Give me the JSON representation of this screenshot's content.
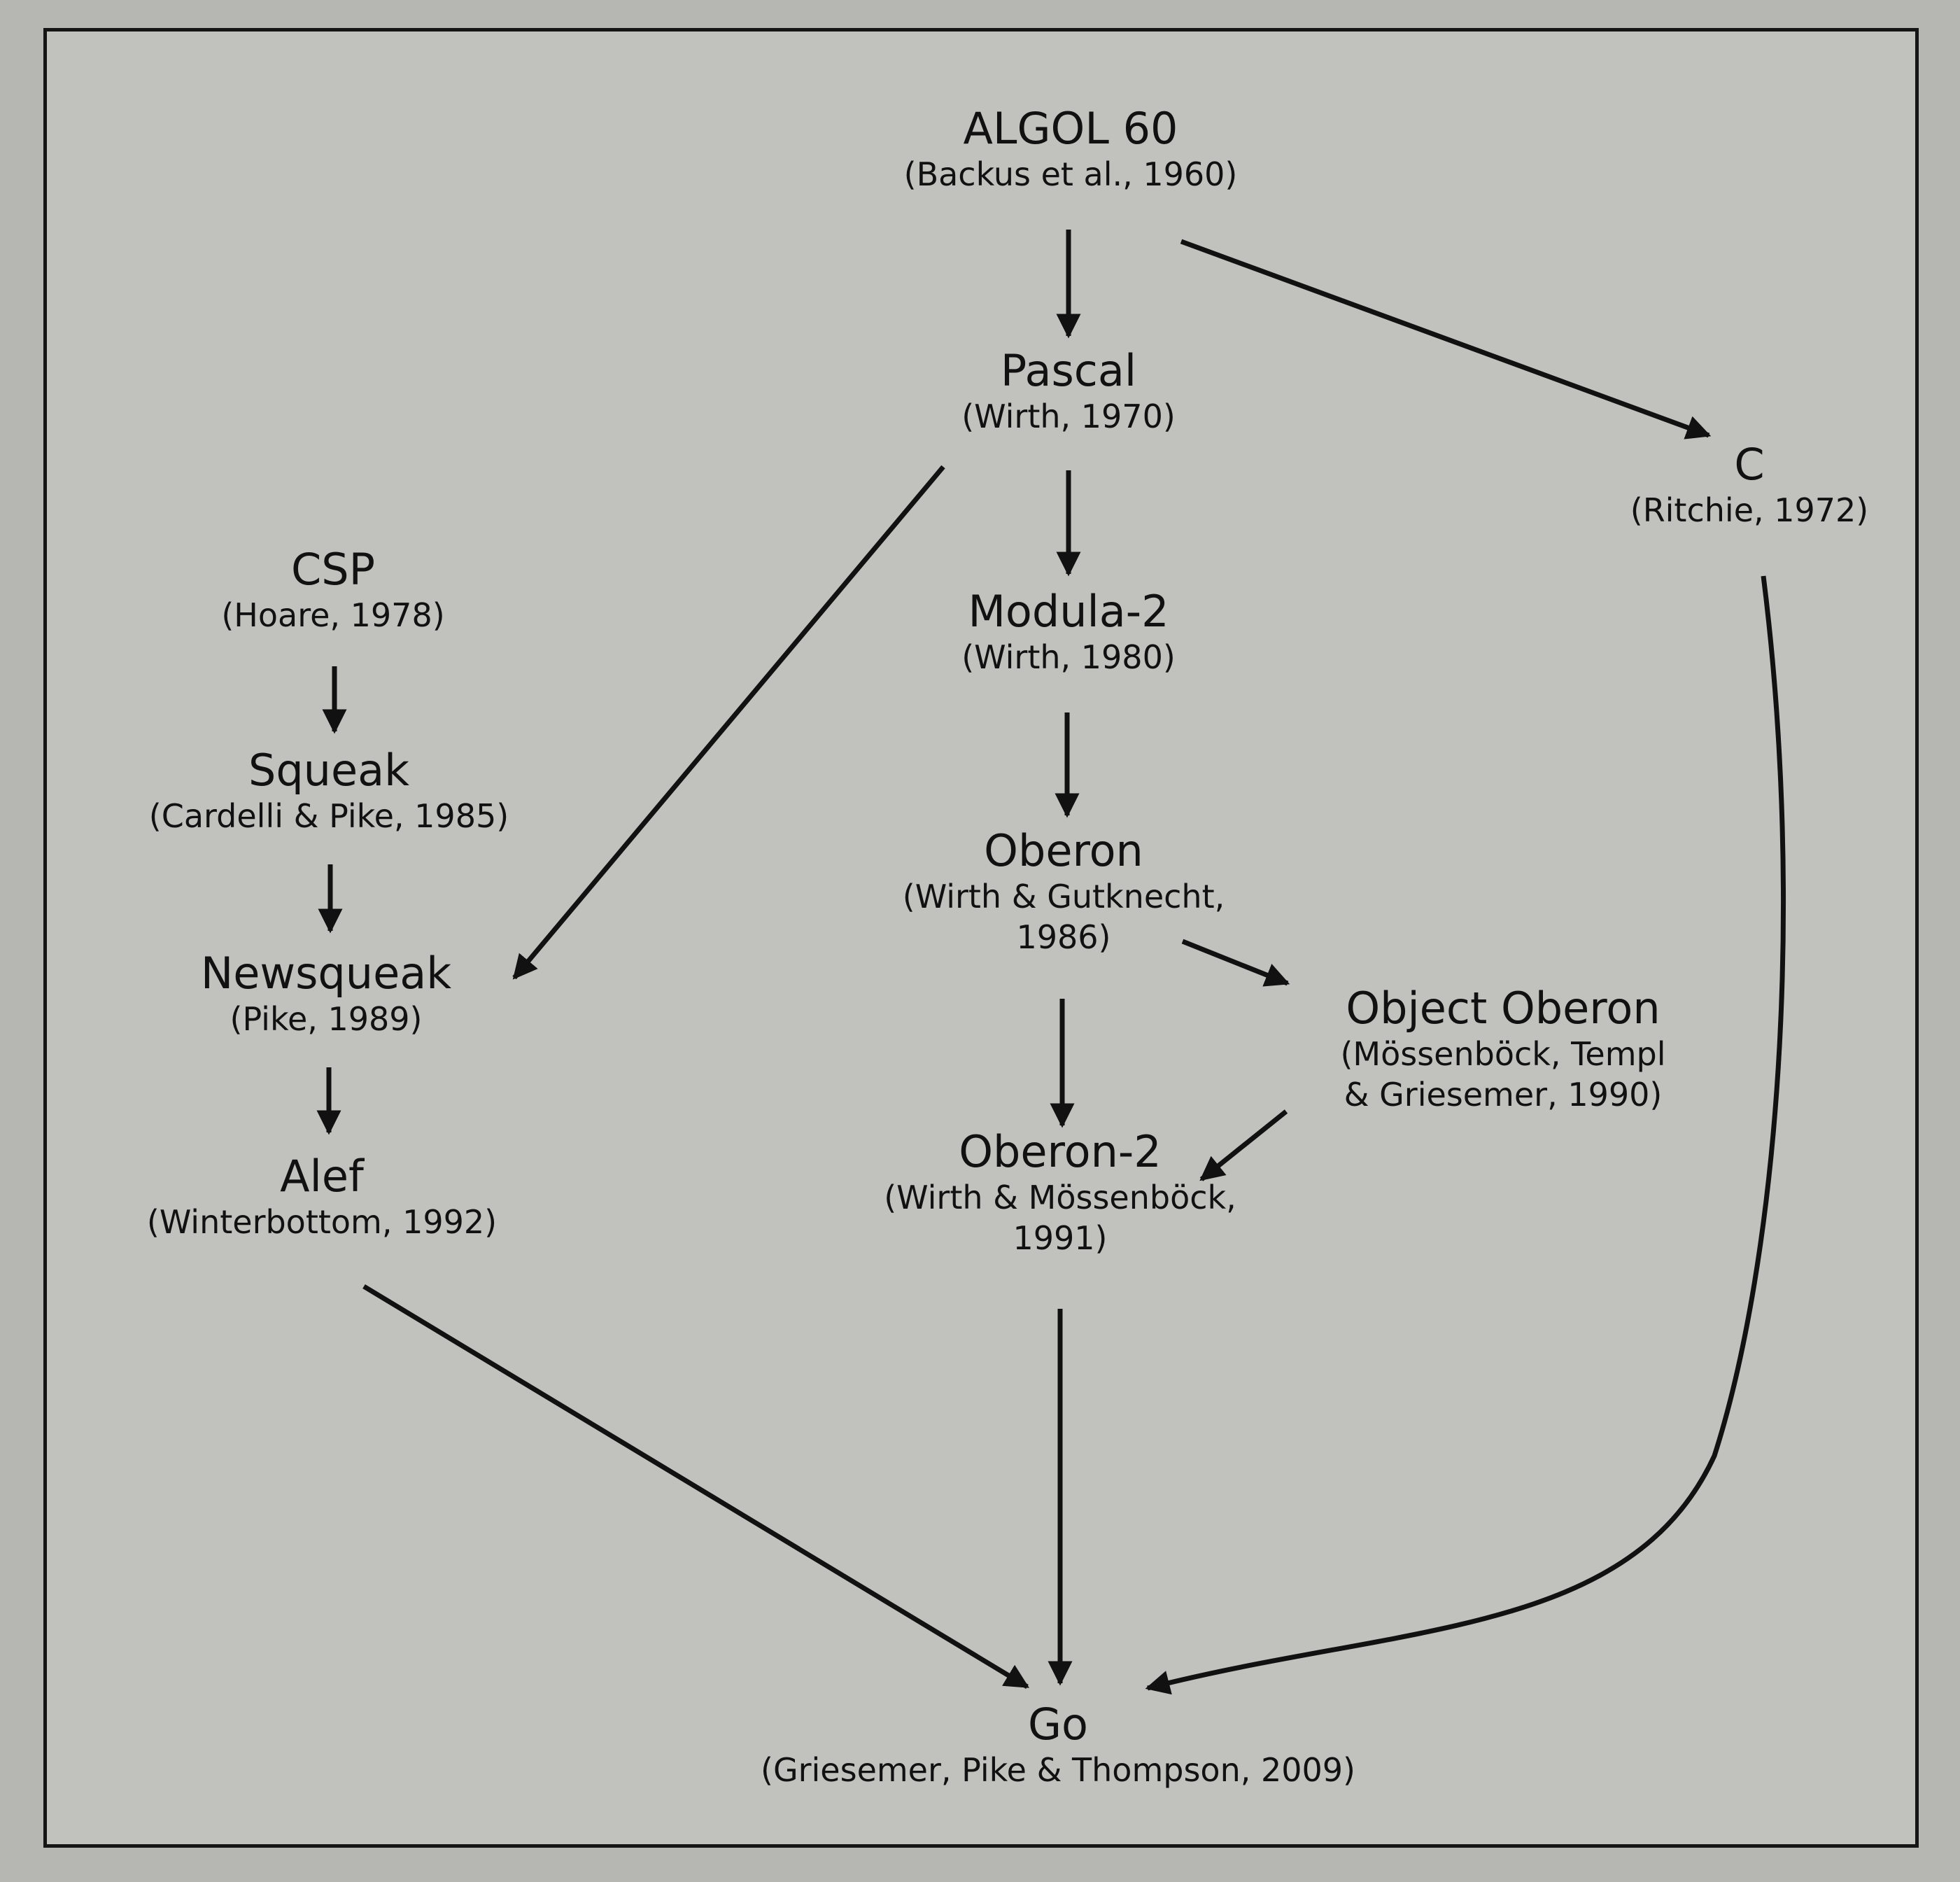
{
  "nodes": {
    "algol": {
      "name": "ALGOL 60",
      "cite": "(Backus et al., 1960)"
    },
    "pascal": {
      "name": "Pascal",
      "cite": "(Wirth, 1970)"
    },
    "c": {
      "name": "C",
      "cite": "(Ritchie, 1972)"
    },
    "csp": {
      "name": "CSP",
      "cite": "(Hoare, 1978)"
    },
    "modula2": {
      "name": "Modula-2",
      "cite": "(Wirth, 1980)"
    },
    "squeak": {
      "name": "Squeak",
      "cite": "(Cardelli & Pike, 1985)"
    },
    "oberon": {
      "name": "Oberon",
      "cite": "(Wirth & Gutknecht,",
      "cite2": "1986)"
    },
    "newsqueak": {
      "name": "Newsqueak",
      "cite": "(Pike, 1989)"
    },
    "object_oberon": {
      "name": "Object Oberon",
      "cite": "(Mössenböck, Templ",
      "cite2": "& Griesemer, 1990)"
    },
    "oberon2": {
      "name": "Oberon-2",
      "cite": "(Wirth & Mössenböck,",
      "cite2": "1991)"
    },
    "alef": {
      "name": "Alef",
      "cite": "(Winterbottom, 1992)"
    },
    "go": {
      "name": "Go",
      "cite": "(Griesemer, Pike & Thompson, 2009)"
    }
  },
  "edges": [
    {
      "from": "algol",
      "to": "pascal"
    },
    {
      "from": "algol",
      "to": "c"
    },
    {
      "from": "pascal",
      "to": "modula2"
    },
    {
      "from": "pascal",
      "to": "newsqueak"
    },
    {
      "from": "modula2",
      "to": "oberon"
    },
    {
      "from": "csp",
      "to": "squeak"
    },
    {
      "from": "squeak",
      "to": "newsqueak"
    },
    {
      "from": "newsqueak",
      "to": "alef"
    },
    {
      "from": "oberon",
      "to": "object_oberon"
    },
    {
      "from": "oberon",
      "to": "oberon2"
    },
    {
      "from": "object_oberon",
      "to": "oberon2"
    },
    {
      "from": "oberon2",
      "to": "go"
    },
    {
      "from": "alef",
      "to": "go"
    },
    {
      "from": "c",
      "to": "go"
    }
  ]
}
